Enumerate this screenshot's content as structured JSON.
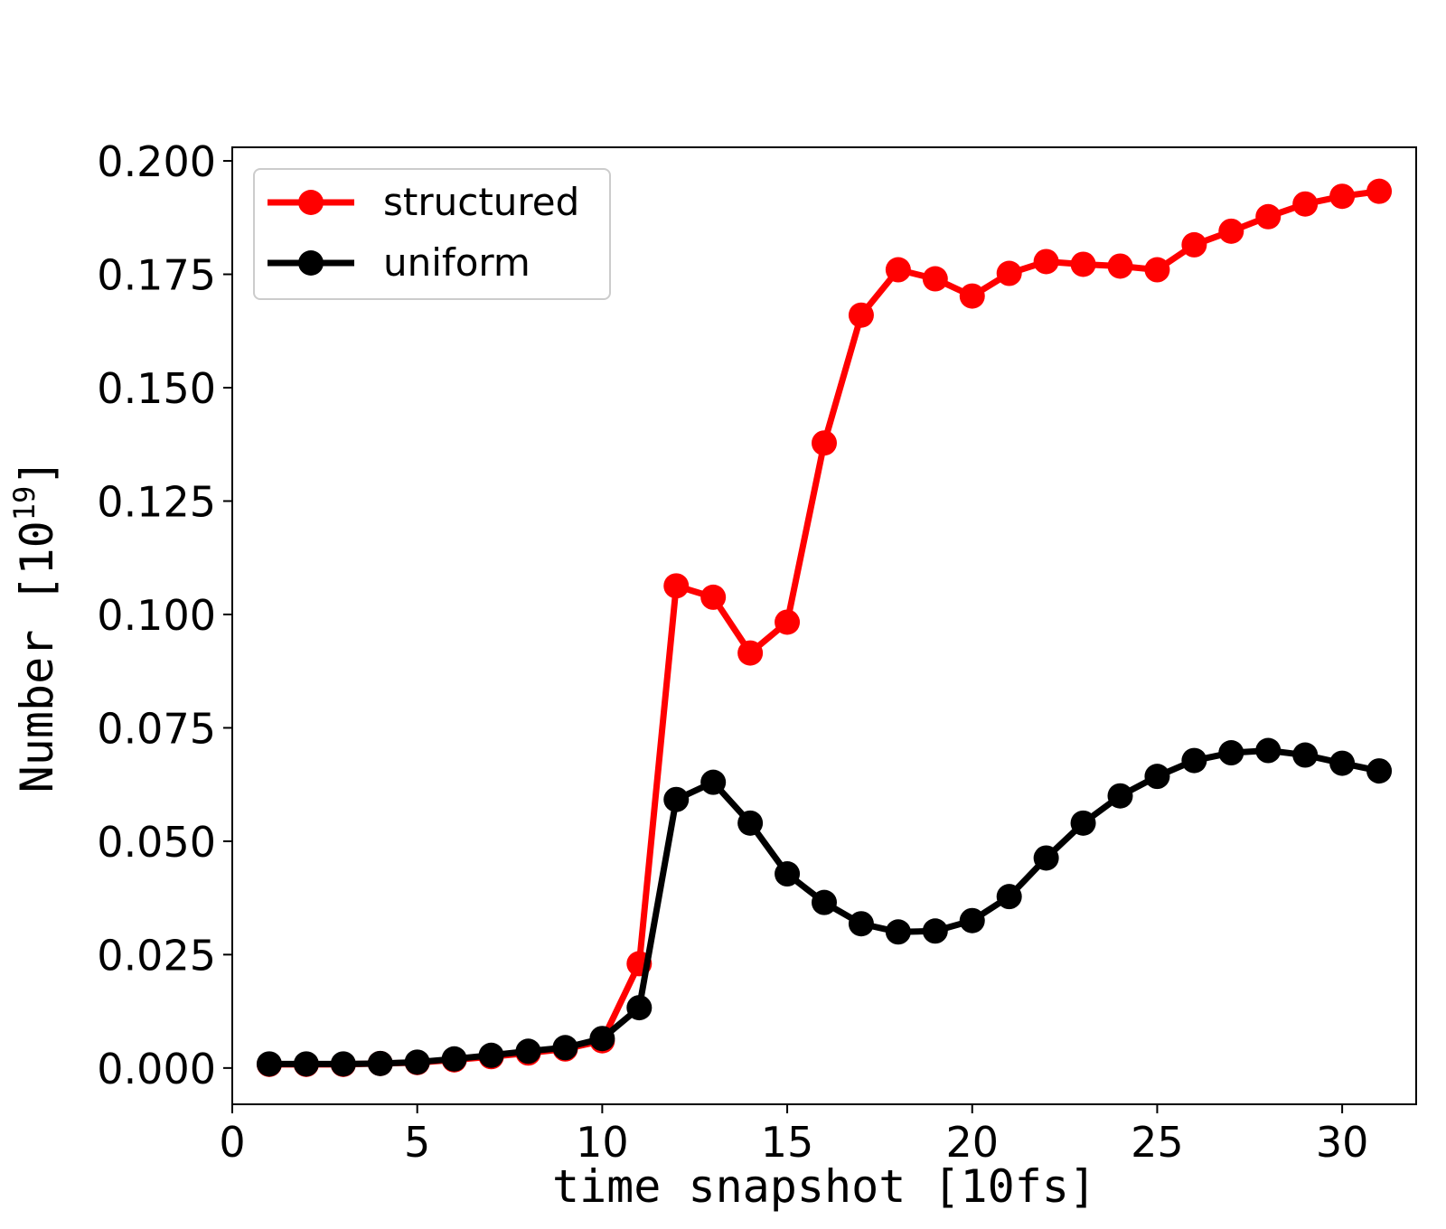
{
  "chart_data": {
    "type": "line",
    "title": "",
    "xlabel": "time snapshot [10fs]",
    "ylabel_text": "Number [10",
    "ylabel_exponent": "19",
    "ylabel_close": "]",
    "xlim": [
      0,
      32
    ],
    "ylim": [
      -0.008,
      0.203
    ],
    "xticks": [
      0,
      5,
      10,
      15,
      20,
      25,
      30
    ],
    "xtick_labels": [
      "0",
      "5",
      "10",
      "15",
      "20",
      "25",
      "30"
    ],
    "yticks": [
      0,
      0.025,
      0.05,
      0.075,
      0.1,
      0.125,
      0.15,
      0.175,
      0.2
    ],
    "ytick_labels": [
      "0.000",
      "0.025",
      "0.050",
      "0.075",
      "0.100",
      "0.125",
      "0.150",
      "0.175",
      "0.200"
    ],
    "grid": false,
    "legend_position": "top-left",
    "x": [
      1,
      2,
      3,
      4,
      5,
      6,
      7,
      8,
      9,
      10,
      11,
      12,
      13,
      14,
      15,
      16,
      17,
      18,
      19,
      20,
      21,
      22,
      23,
      24,
      25,
      26,
      27,
      28,
      29,
      30,
      31
    ],
    "series": [
      {
        "name": "structured",
        "color": "#ff0000",
        "values": [
          0.0008,
          0.0008,
          0.0008,
          0.001,
          0.0012,
          0.0018,
          0.0025,
          0.0033,
          0.0042,
          0.006,
          0.023,
          0.1063,
          0.1038,
          0.0915,
          0.0983,
          0.1378,
          0.166,
          0.176,
          0.174,
          0.1702,
          0.1752,
          0.1778,
          0.1772,
          0.1768,
          0.176,
          0.1815,
          0.1845,
          0.1877,
          0.1905,
          0.1922,
          0.1933
        ]
      },
      {
        "name": "uniform",
        "color": "#000000",
        "values": [
          0.0009,
          0.0009,
          0.0009,
          0.001,
          0.0013,
          0.002,
          0.0028,
          0.0037,
          0.0045,
          0.0065,
          0.0133,
          0.0592,
          0.063,
          0.054,
          0.0428,
          0.0365,
          0.0318,
          0.03,
          0.0302,
          0.0325,
          0.0378,
          0.0463,
          0.054,
          0.06,
          0.0643,
          0.0678,
          0.0695,
          0.07,
          0.069,
          0.0672,
          0.0655
        ]
      }
    ]
  }
}
